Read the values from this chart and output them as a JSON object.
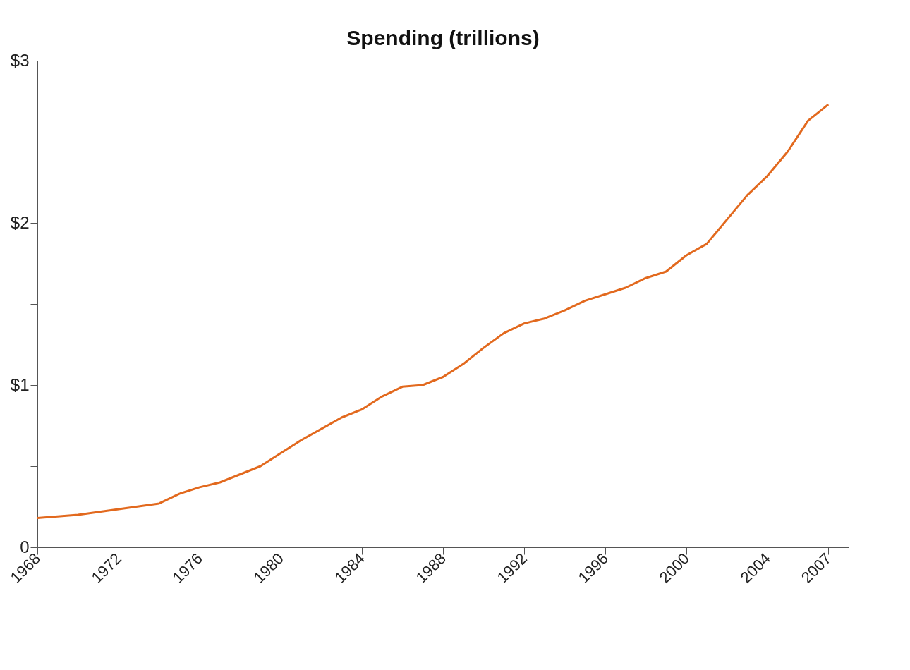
{
  "chart_data": {
    "type": "line",
    "title": "Spending (trillions)",
    "x": [
      1968,
      1970,
      1972,
      1974,
      1975,
      1976,
      1977,
      1978,
      1979,
      1980,
      1981,
      1982,
      1983,
      1984,
      1985,
      1986,
      1987,
      1988,
      1989,
      1990,
      1991,
      1992,
      1993,
      1994,
      1995,
      1996,
      1997,
      1998,
      1999,
      2000,
      2001,
      2002,
      2003,
      2004,
      2005,
      2006,
      2007
    ],
    "series": [
      {
        "color": "#e2691e",
        "values": [
          0.18,
          0.2,
          0.235,
          0.27,
          0.33,
          0.37,
          0.4,
          0.45,
          0.5,
          0.58,
          0.66,
          0.73,
          0.8,
          0.85,
          0.93,
          0.99,
          1.0,
          1.05,
          1.13,
          1.23,
          1.32,
          1.38,
          1.41,
          1.46,
          1.52,
          1.56,
          1.6,
          1.66,
          1.7,
          1.8,
          1.87,
          2.02,
          2.17,
          2.29,
          2.44,
          2.63,
          2.73
        ]
      }
    ],
    "xlim": [
      1968,
      2008
    ],
    "xticks": [
      1968,
      1972,
      1976,
      1980,
      1984,
      1988,
      1992,
      1996,
      2000,
      2004,
      2007
    ],
    "ylim": [
      0,
      3
    ],
    "yticks": [
      {
        "value": 0,
        "label": "0"
      },
      {
        "value": 0.5,
        "label": null
      },
      {
        "value": 1,
        "label": "$1"
      },
      {
        "value": 1.5,
        "label": null
      },
      {
        "value": 2,
        "label": "$2"
      },
      {
        "value": 2.5,
        "label": null
      },
      {
        "value": 3,
        "label": "$3"
      }
    ],
    "grid": false,
    "marker": "none",
    "line_style": "solid"
  }
}
